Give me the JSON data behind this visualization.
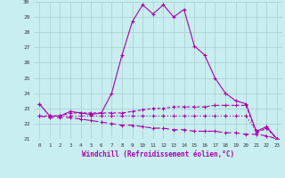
{
  "xlabel": "Windchill (Refroidissement éolien,°C)",
  "x_hours": [
    0,
    1,
    2,
    3,
    4,
    5,
    6,
    7,
    8,
    9,
    10,
    11,
    12,
    13,
    14,
    15,
    16,
    17,
    18,
    19,
    20,
    21,
    22,
    23
  ],
  "temp_line": [
    23.3,
    22.5,
    22.5,
    22.8,
    22.7,
    22.6,
    22.7,
    24.0,
    26.5,
    28.7,
    29.8,
    29.2,
    29.8,
    29.0,
    29.5,
    27.1,
    26.5,
    25.0,
    24.0,
    23.5,
    23.3,
    21.5,
    21.8,
    21.0
  ],
  "line2": [
    22.5,
    22.5,
    22.5,
    22.7,
    22.7,
    22.7,
    22.7,
    22.7,
    22.7,
    22.8,
    22.9,
    23.0,
    23.0,
    23.1,
    23.1,
    23.1,
    23.1,
    23.2,
    23.2,
    23.2,
    23.2,
    21.4,
    21.7,
    21.0
  ],
  "line3": [
    22.5,
    22.4,
    22.4,
    22.4,
    22.3,
    22.2,
    22.1,
    22.0,
    21.9,
    21.9,
    21.8,
    21.7,
    21.7,
    21.6,
    21.6,
    21.5,
    21.5,
    21.5,
    21.4,
    21.4,
    21.3,
    21.3,
    21.2,
    21.0
  ],
  "line4": [
    23.3,
    22.5,
    22.5,
    22.5,
    22.5,
    22.5,
    22.5,
    22.5,
    22.5,
    22.5,
    22.5,
    22.5,
    22.5,
    22.5,
    22.5,
    22.5,
    22.5,
    22.5,
    22.5,
    22.5,
    22.5,
    21.5,
    21.7,
    21.0
  ],
  "ylim": [
    21,
    30
  ],
  "yticks": [
    21,
    22,
    23,
    24,
    25,
    26,
    27,
    28,
    29,
    30
  ],
  "line_color": "#aa00aa",
  "bg_color": "#c8eef0",
  "grid_color": "#aacccc",
  "marker": "+"
}
